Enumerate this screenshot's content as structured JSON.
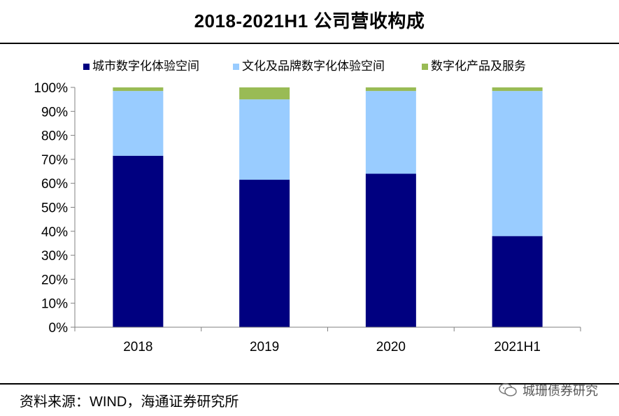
{
  "title": "2018-2021H1 公司营收构成",
  "source": "资料来源：WIND，海通证券研究所",
  "brand": {
    "label": "城珊债券研究",
    "icon": "chat-bubbles-icon"
  },
  "colors": {
    "city": "#000080",
    "culture": "#99CCFF",
    "digital": "#99BB55",
    "axis": "#808080"
  },
  "chart_data": {
    "type": "bar",
    "stacked": true,
    "title": "2018-2021H1 公司营收构成",
    "categories": [
      "2018",
      "2019",
      "2020",
      "2021H1"
    ],
    "series": [
      {
        "name": "城市数字化体验空间",
        "color": "#000080",
        "values": [
          71.5,
          61.5,
          64,
          38
        ]
      },
      {
        "name": "文化及品牌数字化体验空间",
        "color": "#99CCFF",
        "values": [
          27,
          33.5,
          34.5,
          60.5
        ]
      },
      {
        "name": "数字化产品及服务",
        "color": "#99BB55",
        "values": [
          1.5,
          5,
          1.5,
          1.5
        ]
      }
    ],
    "ylim": [
      0,
      100
    ],
    "yticks": [
      "0%",
      "10%",
      "20%",
      "30%",
      "40%",
      "50%",
      "60%",
      "70%",
      "80%",
      "90%",
      "100%"
    ],
    "xlabel": "",
    "ylabel": "",
    "legend_position": "top"
  }
}
